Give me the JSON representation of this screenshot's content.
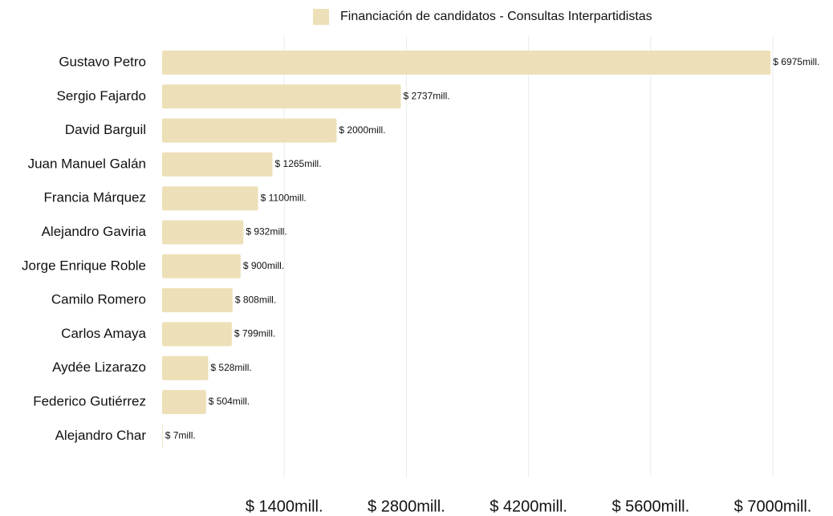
{
  "chart_data": {
    "type": "bar",
    "orientation": "horizontal",
    "categories": [
      "Gustavo Petro",
      "Sergio Fajardo",
      "David Barguil",
      "Juan Manuel Galán",
      "Francia Márquez",
      "Alejandro Gaviria",
      "Jorge Enrique Roble",
      "Camilo Romero",
      "Carlos Amaya",
      "Aydée Lizarazo",
      "Federico Gutiérrez",
      "Alejandro Char"
    ],
    "series": [
      {
        "name": "Financiación de candidatos - Consultas Interpartidistas",
        "color": "#ede0b8",
        "values": [
          6975,
          2737,
          2000,
          1265,
          1100,
          932,
          900,
          808,
          799,
          528,
          504,
          7
        ],
        "value_labels": [
          "$ 6975mill.",
          "$ 2737mill.",
          "$ 2000mill.",
          "$ 1265mill.",
          "$ 1100mill.",
          "$ 932mill.",
          "$ 900mill.",
          "$ 808mill.",
          "$ 799mill.",
          "$ 528mill.",
          "$ 504mill.",
          "$ 7mill."
        ]
      }
    ],
    "xlim": [
      0,
      7000
    ],
    "xticks": [
      {
        "value": 1400,
        "label": "$ 1400mill."
      },
      {
        "value": 2800,
        "label": "$ 2800mill."
      },
      {
        "value": 4200,
        "label": "$ 4200mill."
      },
      {
        "value": 5600,
        "label": "$ 5600mill."
      },
      {
        "value": 7000,
        "label": "$ 7000mill."
      }
    ],
    "grid": true,
    "legend": "top"
  }
}
